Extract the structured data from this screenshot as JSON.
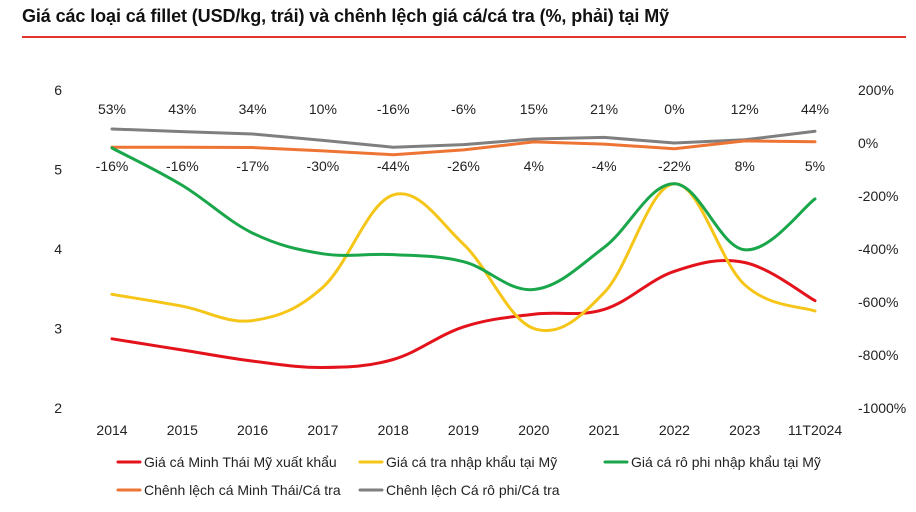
{
  "chart_data": {
    "type": "line",
    "title": "Giá các loại cá fillet (USD/kg, trái) và chênh lệch giá cá/cá tra (%, phải) tại Mỹ",
    "categories": [
      "2014",
      "2015",
      "2016",
      "2017",
      "2018",
      "2019",
      "2020",
      "2021",
      "2022",
      "2023",
      "11T2024"
    ],
    "y_left": {
      "ylim": [
        2,
        6
      ],
      "ticks": [
        "2",
        "3",
        "4",
        "5",
        "6"
      ]
    },
    "y_right": {
      "ylim": [
        -1000,
        200
      ],
      "ticks": [
        "200%",
        "0%",
        "-200%",
        "-400%",
        "-600%",
        "-800%",
        "-1000%"
      ]
    },
    "series": [
      {
        "name": "Giá cá Minh Thái Mỹ xuất khẩu",
        "axis": "left",
        "color": "#e3121b",
        "values": [
          2.87,
          2.73,
          2.59,
          2.51,
          2.61,
          3.02,
          3.18,
          3.24,
          3.72,
          3.83,
          3.35
        ]
      },
      {
        "name": "Giá cá tra nhập khẩu tại Mỹ",
        "axis": "left",
        "color": "#f5c518",
        "values": [
          3.43,
          3.28,
          3.1,
          3.52,
          4.68,
          4.06,
          3.0,
          3.45,
          4.82,
          3.55,
          3.22
        ]
      },
      {
        "name": "Giá cá rô phi nhập khẩu tại Mỹ",
        "axis": "left",
        "color": "#1aa64a",
        "values": [
          5.27,
          4.8,
          4.2,
          3.94,
          3.93,
          3.84,
          3.49,
          4.02,
          4.82,
          3.99,
          4.63
        ]
      },
      {
        "name": "Chênh lệch cá Minh Thái/Cá tra",
        "axis": "right",
        "color": "#ee7434",
        "values": [
          -16,
          -16,
          -17,
          -30,
          -44,
          -26,
          4,
          -4,
          -22,
          8,
          5
        ],
        "labels": [
          "-16%",
          "-16%",
          "-17%",
          "-30%",
          "-44%",
          "-26%",
          "4%",
          "-4%",
          "-22%",
          "8%",
          "5%"
        ]
      },
      {
        "name": "Chênh lệch Cá rô phi/Cá tra",
        "axis": "right",
        "color": "#7f7f7f",
        "values": [
          53,
          43,
          34,
          10,
          -16,
          -6,
          15,
          21,
          0,
          12,
          44
        ],
        "labels": [
          "53%",
          "43%",
          "34%",
          "10%",
          "-16%",
          "-6%",
          "15%",
          "21%",
          "0%",
          "12%",
          "44%"
        ]
      }
    ],
    "legend": "bottom",
    "grid": false
  }
}
